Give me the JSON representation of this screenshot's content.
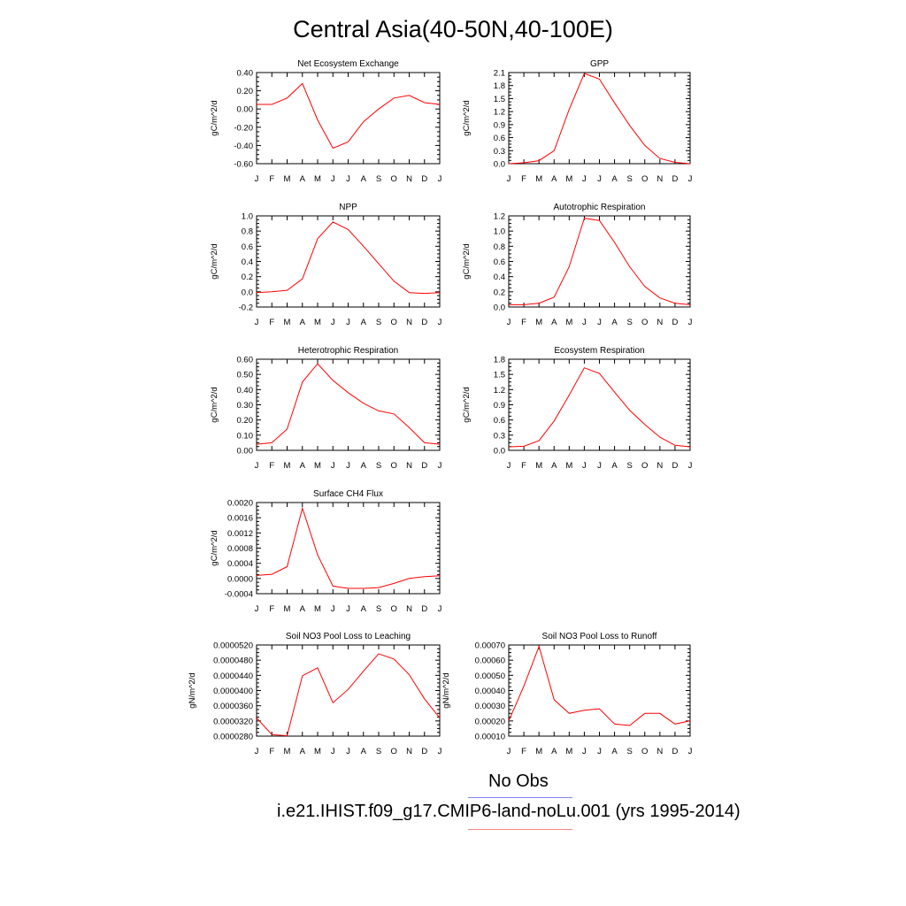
{
  "title": "Central Asia(40-50N,40-100E)",
  "legend": {
    "obs_label": "No Obs",
    "case_label": "i.e21.IHIST.f09_g17.CMIP6-land-noLu.001 (yrs 1995-2014)",
    "obs_color": "#8080ff",
    "case_color": "#ff8080"
  },
  "line_color": "#ff0000",
  "chart_data": [
    {
      "type": "line",
      "title": "Net Ecosystem Exchange",
      "ylabel": "gC/m^2/d",
      "categories": [
        "J",
        "F",
        "M",
        "A",
        "M",
        "J",
        "J",
        "A",
        "S",
        "O",
        "N",
        "D",
        "J"
      ],
      "ylim": [
        -0.6,
        0.4
      ],
      "yticks": [
        "0.40",
        "0.20",
        "0.00",
        "-0.20",
        "-0.40",
        "-0.60"
      ],
      "values": [
        0.05,
        0.05,
        0.12,
        0.28,
        -0.12,
        -0.43,
        -0.36,
        -0.14,
        0.0,
        0.12,
        0.15,
        0.07,
        0.05
      ]
    },
    {
      "type": "line",
      "title": "GPP",
      "ylabel": "gC/m^2/d",
      "categories": [
        "J",
        "F",
        "M",
        "A",
        "M",
        "J",
        "J",
        "A",
        "S",
        "O",
        "N",
        "D",
        "J"
      ],
      "ylim": [
        0.0,
        2.1
      ],
      "yticks": [
        "2.1",
        "1.8",
        "1.5",
        "1.2",
        "0.9",
        "0.6",
        "0.3",
        "0.0"
      ],
      "values": [
        0.0,
        0.02,
        0.07,
        0.3,
        1.25,
        2.08,
        1.95,
        1.4,
        0.88,
        0.42,
        0.12,
        0.03,
        0.0
      ]
    },
    {
      "type": "line",
      "title": "NPP",
      "ylabel": "gC/m^2/d",
      "categories": [
        "J",
        "F",
        "M",
        "A",
        "M",
        "J",
        "J",
        "A",
        "S",
        "O",
        "N",
        "D",
        "J"
      ],
      "ylim": [
        -0.2,
        1.0
      ],
      "yticks": [
        "1.0",
        "0.8",
        "0.6",
        "0.4",
        "0.2",
        "0.0",
        "-0.2"
      ],
      "values": [
        -0.01,
        0.0,
        0.02,
        0.17,
        0.7,
        0.92,
        0.82,
        0.6,
        0.37,
        0.14,
        -0.01,
        -0.02,
        -0.01
      ]
    },
    {
      "type": "line",
      "title": "Autotrophic Respiration",
      "ylabel": "gC/m^2/d",
      "categories": [
        "J",
        "F",
        "M",
        "A",
        "M",
        "J",
        "J",
        "A",
        "S",
        "O",
        "N",
        "D",
        "J"
      ],
      "ylim": [
        0.0,
        1.2
      ],
      "yticks": [
        "1.2",
        "1.0",
        "0.8",
        "0.6",
        "0.4",
        "0.2",
        "0.0"
      ],
      "values": [
        0.03,
        0.03,
        0.05,
        0.13,
        0.53,
        1.17,
        1.14,
        0.85,
        0.53,
        0.27,
        0.12,
        0.05,
        0.03
      ]
    },
    {
      "type": "line",
      "title": "Heterotrophic Respiration",
      "ylabel": "gC/m^2/d",
      "categories": [
        "J",
        "F",
        "M",
        "A",
        "M",
        "J",
        "J",
        "A",
        "S",
        "O",
        "N",
        "D",
        "J"
      ],
      "ylim": [
        0.0,
        0.6
      ],
      "yticks": [
        "0.60",
        "0.50",
        "0.40",
        "0.30",
        "0.20",
        "0.10",
        "0.00"
      ],
      "values": [
        0.04,
        0.05,
        0.14,
        0.45,
        0.57,
        0.46,
        0.38,
        0.31,
        0.26,
        0.24,
        0.15,
        0.05,
        0.04
      ]
    },
    {
      "type": "line",
      "title": "Ecosystem Respiration",
      "ylabel": "gC/m^2/d",
      "categories": [
        "J",
        "F",
        "M",
        "A",
        "M",
        "J",
        "J",
        "A",
        "S",
        "O",
        "N",
        "D",
        "J"
      ],
      "ylim": [
        0.0,
        1.8
      ],
      "yticks": [
        "1.8",
        "1.5",
        "1.2",
        "0.9",
        "0.6",
        "0.3",
        "0.0"
      ],
      "values": [
        0.07,
        0.08,
        0.19,
        0.58,
        1.09,
        1.63,
        1.52,
        1.15,
        0.79,
        0.51,
        0.26,
        0.1,
        0.07
      ]
    },
    {
      "type": "line",
      "title": "Surface CH4 Flux",
      "ylabel": "gC/m^2/d",
      "categories": [
        "J",
        "F",
        "M",
        "A",
        "M",
        "J",
        "J",
        "A",
        "S",
        "O",
        "N",
        "D",
        "J"
      ],
      "ylim": [
        -0.0004,
        0.002
      ],
      "yticks": [
        "0.0020",
        "0.0016",
        "0.0012",
        "0.0008",
        "0.0004",
        "0.0000",
        "-0.0004"
      ],
      "values": [
        8e-05,
        0.00011,
        0.00031,
        0.00185,
        0.00062,
        -0.0002,
        -0.00026,
        -0.00026,
        -0.00024,
        -0.00013,
        0.0,
        5e-05,
        7e-05
      ]
    },
    {
      "type": "line",
      "title": "Soil NO3 Pool Loss to Leaching",
      "ylabel": "gN/m^2/d",
      "categories": [
        "J",
        "F",
        "M",
        "A",
        "M",
        "J",
        "J",
        "A",
        "S",
        "O",
        "N",
        "D",
        "J"
      ],
      "ylim": [
        2.8e-05,
        5.2e-05
      ],
      "yticks": [
        "0.0000520",
        "0.0000480",
        "0.0000440",
        "0.0000400",
        "0.0000360",
        "0.0000320",
        "0.0000280"
      ],
      "values": [
        3.28e-05,
        2.84e-05,
        2.81e-05,
        4.39e-05,
        4.6e-05,
        3.68e-05,
        4.03e-05,
        4.51e-05,
        4.97e-05,
        4.83e-05,
        4.42e-05,
        3.78e-05,
        3.28e-05
      ]
    },
    {
      "type": "line",
      "title": "Soil NO3 Pool Loss to Runoff",
      "ylabel": "gN/m^2/d",
      "categories": [
        "J",
        "F",
        "M",
        "A",
        "M",
        "J",
        "J",
        "A",
        "S",
        "O",
        "N",
        "D",
        "J"
      ],
      "ylim": [
        0.0001,
        0.0007
      ],
      "yticks": [
        "0.00070",
        "0.00060",
        "0.00050",
        "0.00040",
        "0.00030",
        "0.00020",
        "0.00010"
      ],
      "values": [
        0.0002,
        0.00043,
        0.00069,
        0.00034,
        0.00025,
        0.00027,
        0.00028,
        0.00018,
        0.00017,
        0.00025,
        0.00025,
        0.00018,
        0.0002
      ]
    }
  ]
}
